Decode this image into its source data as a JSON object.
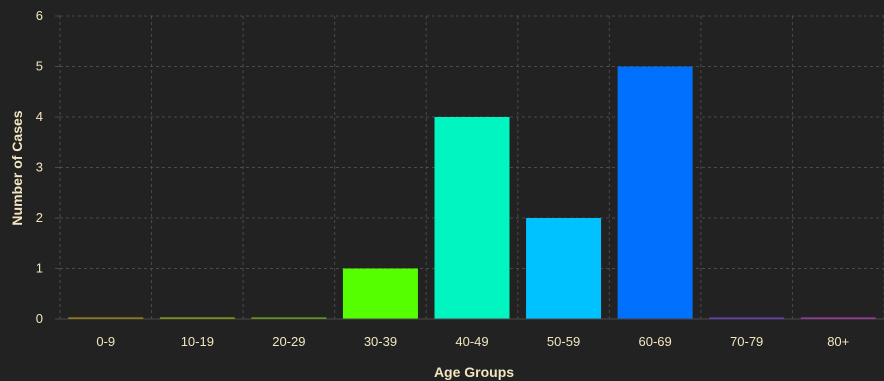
{
  "chart_data": {
    "type": "bar",
    "categories": [
      "0-9",
      "10-19",
      "20-29",
      "30-39",
      "40-49",
      "50-59",
      "60-69",
      "70-79",
      "80+"
    ],
    "values": [
      0,
      0,
      0,
      1,
      4,
      2,
      5,
      0,
      0
    ],
    "colors": [
      "#c8a000",
      "#b0c800",
      "#7ecc00",
      "#55ff00",
      "#00f5c0",
      "#00c2ff",
      "#0070ff",
      "#7a3cff",
      "#cc33cc"
    ],
    "xlabel": "Age Groups",
    "ylabel": "Number of Cases",
    "ylim": [
      0,
      6
    ],
    "yticks": [
      0,
      1,
      2,
      3,
      4,
      5,
      6
    ],
    "grid": true,
    "background": "#222222",
    "grid_color": "#4a4a4a",
    "text_color": "#f2e6c0"
  }
}
